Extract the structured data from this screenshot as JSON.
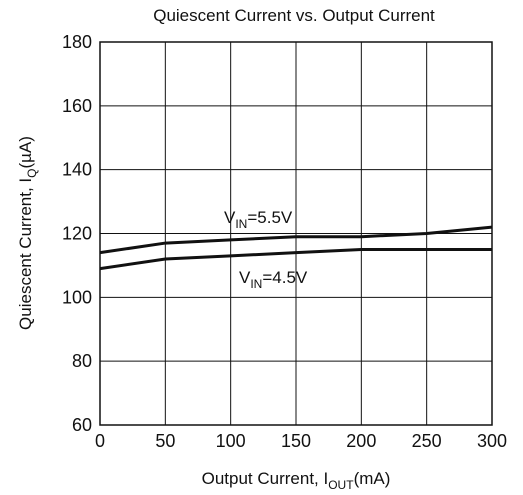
{
  "chart_data": {
    "type": "line",
    "title": "Quiescent Current vs. Output Current",
    "xlabel": {
      "main": "Output Current, I",
      "sub": "OUT",
      "tail": "(mA)"
    },
    "ylabel": {
      "main": "Quiescent Current, I",
      "sub": "Q",
      "tail": "(µA)"
    },
    "xlim": [
      0,
      300
    ],
    "ylim": [
      60,
      180
    ],
    "x_ticks": [
      "0",
      "50",
      "100",
      "150",
      "200",
      "250",
      "300"
    ],
    "y_ticks": [
      "60",
      "80",
      "100",
      "120",
      "140",
      "160",
      "180"
    ],
    "grid": true,
    "series": [
      {
        "label": {
          "main": "V",
          "sub": "IN",
          "tail": "=5.5V"
        },
        "x": [
          0,
          50,
          100,
          150,
          200,
          250,
          300
        ],
        "y": [
          114,
          117,
          118,
          119,
          119,
          120,
          122
        ]
      },
      {
        "label": {
          "main": "V",
          "sub": "IN",
          "tail": "=4.5V"
        },
        "x": [
          0,
          50,
          100,
          150,
          200,
          250,
          300
        ],
        "y": [
          109,
          112,
          113,
          114,
          115,
          115,
          115
        ]
      }
    ]
  }
}
